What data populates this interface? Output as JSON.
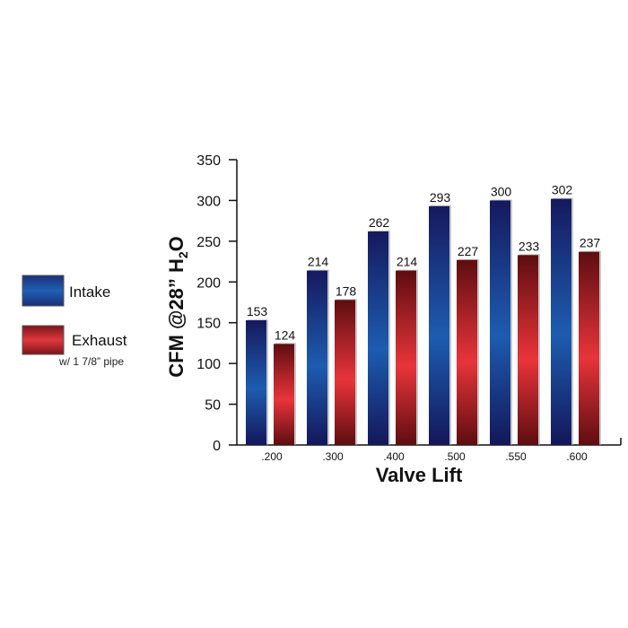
{
  "chart_data": {
    "type": "bar",
    "title": "",
    "xlabel": "Valve Lift",
    "ylabel": {
      "main": "CFM @28” H",
      "sub": "2",
      "tail": "O"
    },
    "categories": [
      ".200",
      ".300",
      ".400",
      ".500",
      ".550",
      ".600"
    ],
    "series": [
      {
        "name": "Intake",
        "values": [
          153,
          214,
          262,
          293,
          300,
          302
        ],
        "color": "#1a3a8c"
      },
      {
        "name": "Exhaust",
        "values": [
          124,
          178,
          214,
          227,
          233,
          237
        ],
        "color": "#c0262d"
      }
    ],
    "legend_note": "w/ 1 7/8” pipe",
    "ylim": [
      0,
      350
    ],
    "yticks": [
      0,
      50,
      100,
      150,
      200,
      250,
      300,
      350
    ],
    "legend_position": "left",
    "grid": false
  }
}
